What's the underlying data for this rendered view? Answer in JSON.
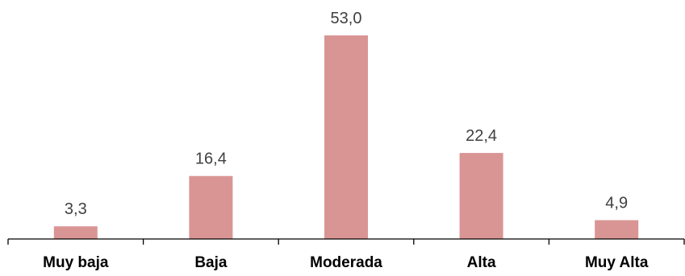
{
  "chart_data": {
    "type": "bar",
    "categories": [
      "Muy baja",
      "Baja",
      "Moderada",
      "Alta",
      "Muy Alta"
    ],
    "values": [
      3.3,
      16.4,
      53.0,
      22.4,
      4.9
    ],
    "value_labels": [
      "3,3",
      "16,4",
      "53,0",
      "22,4",
      "4,9"
    ],
    "title": "",
    "xlabel": "",
    "ylabel": "",
    "ylim": [
      0,
      53.0
    ],
    "grid": false,
    "legend": "none",
    "bar_color": "#d99594"
  }
}
